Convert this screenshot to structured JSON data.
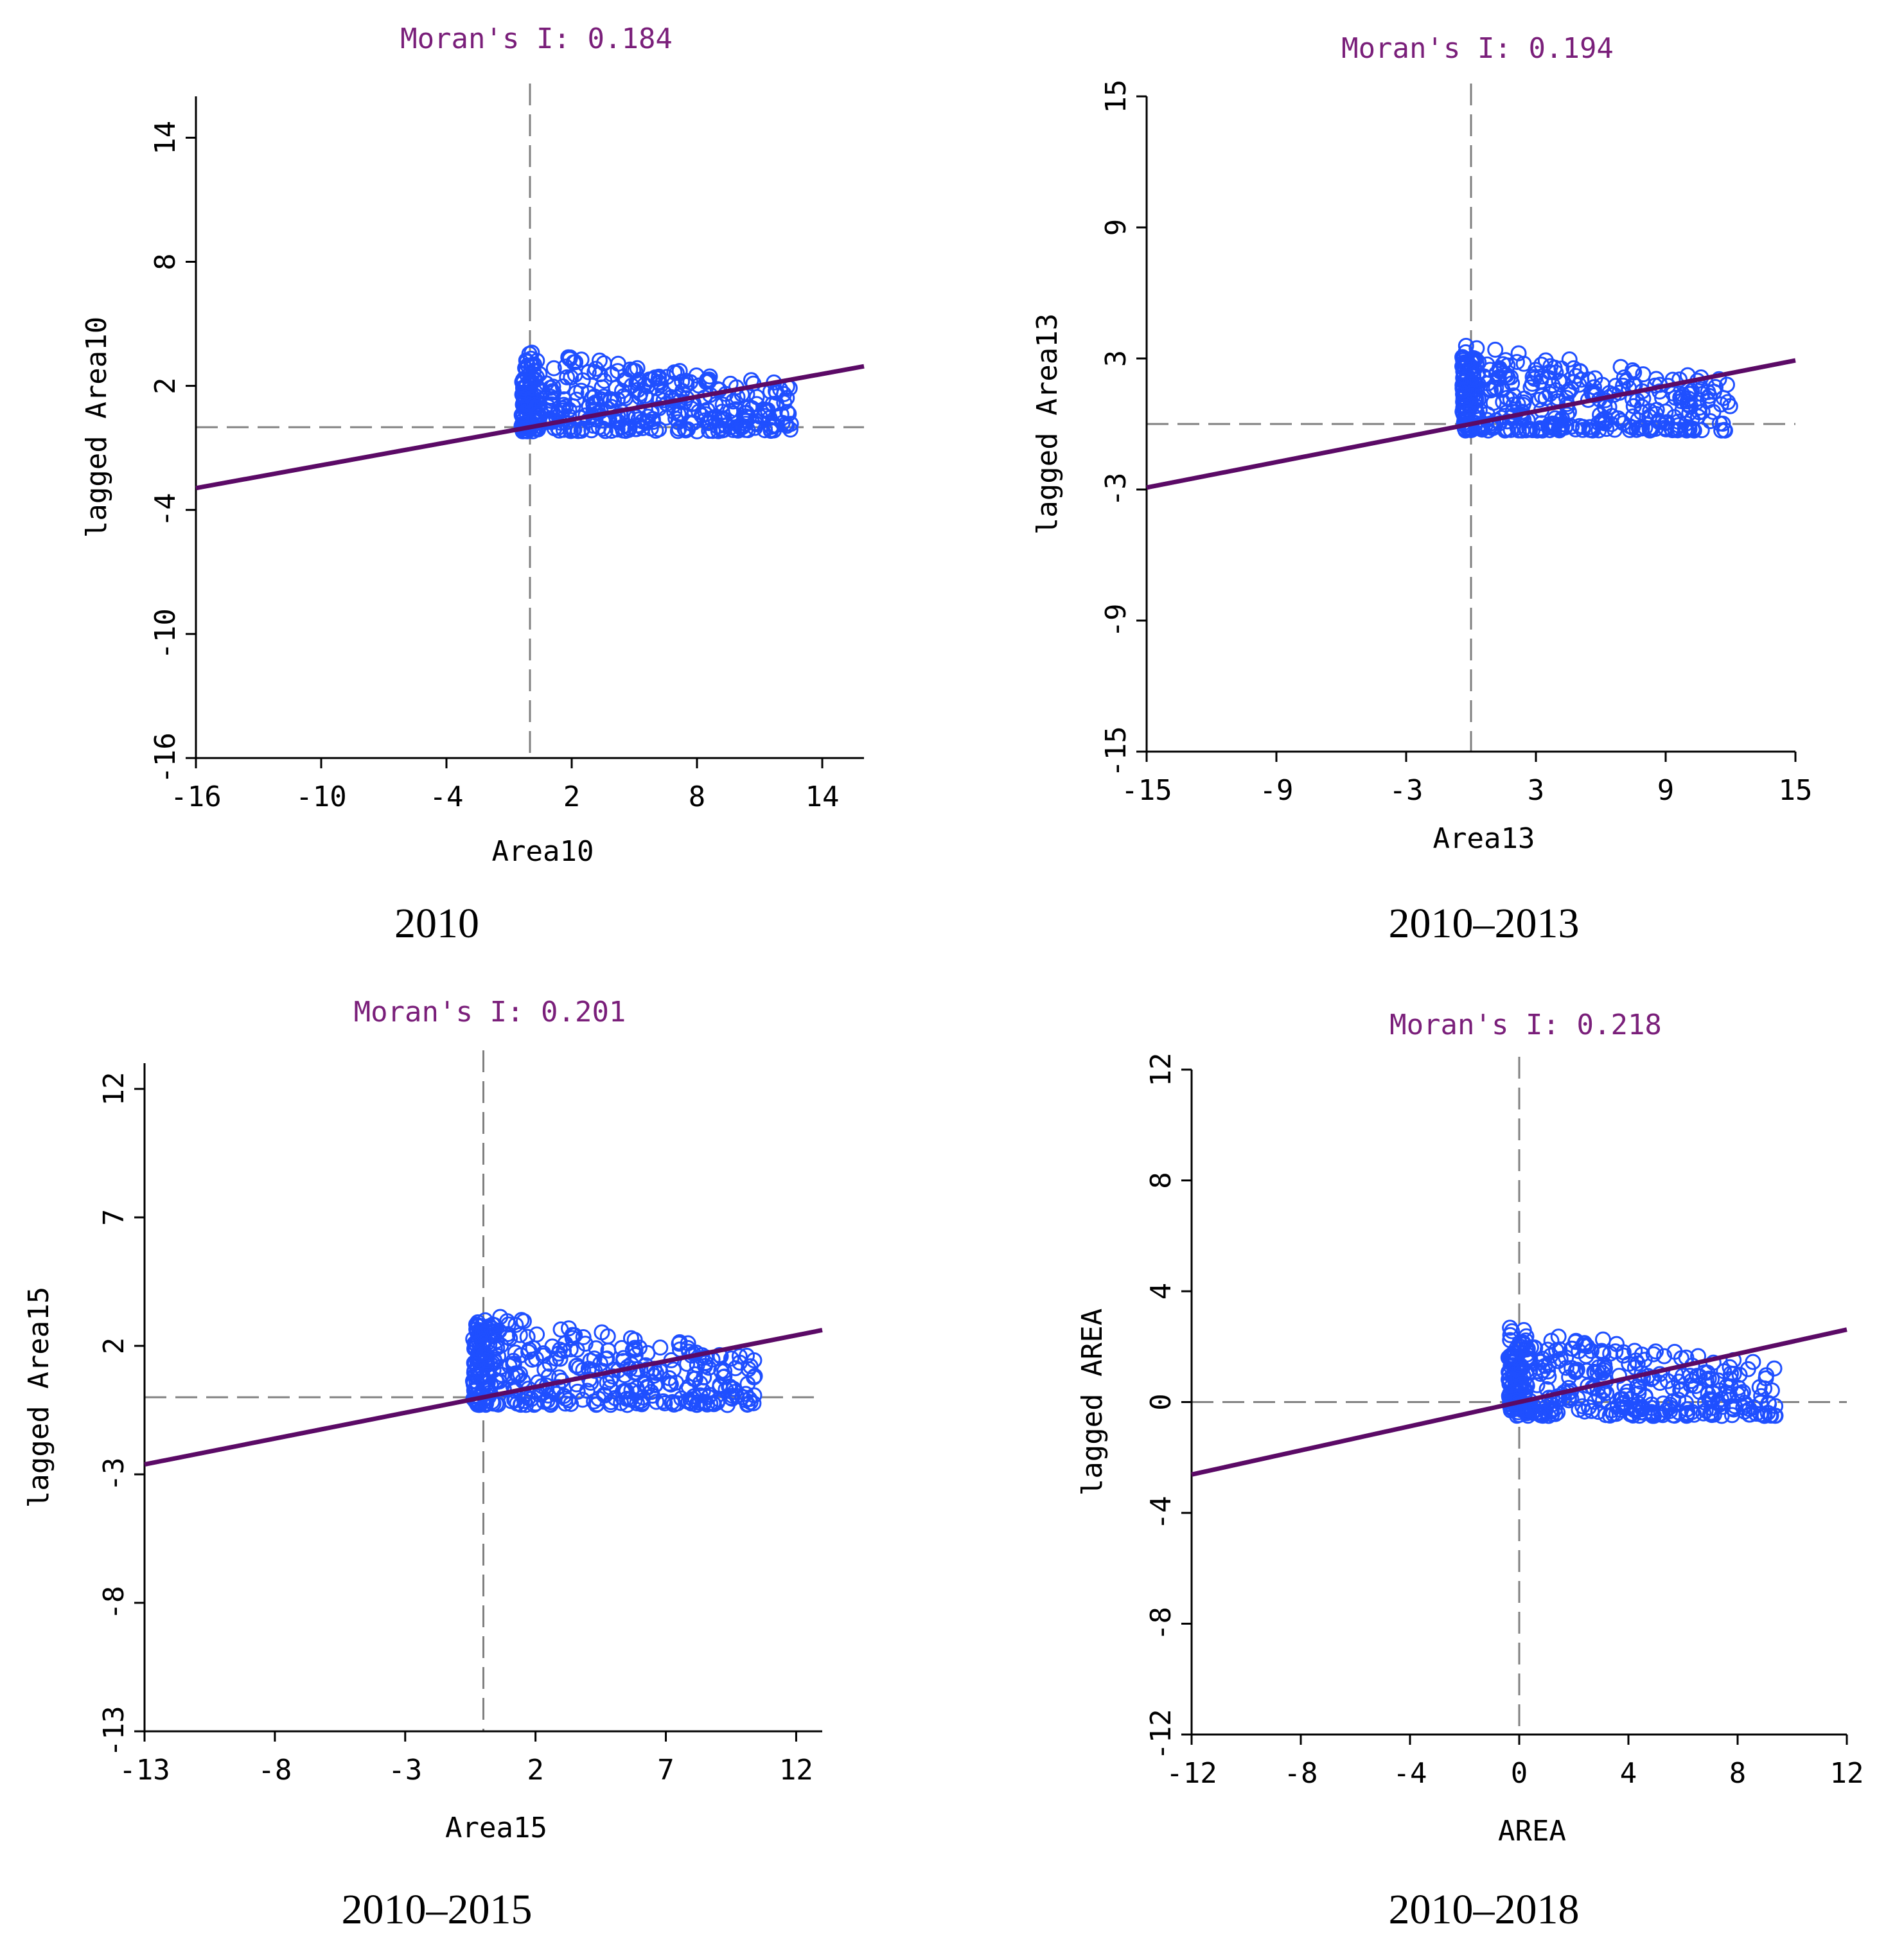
{
  "colors": {
    "title": "#7a1f7a",
    "point": "#1f4fff",
    "regression": "#5b0a66",
    "axis": "#000000",
    "dashed": "#808080"
  },
  "chart_data": [
    {
      "type": "scatter",
      "title": "Moran's I: 0.184",
      "caption": "2010",
      "xlabel": "Area10",
      "ylabel": "lagged Area10",
      "xlim": [
        -16,
        16
      ],
      "ylim": [
        -16,
        16
      ],
      "xticks": [
        -16,
        -10,
        -4,
        2,
        8,
        14
      ],
      "yticks": [
        -16,
        -10,
        -4,
        2,
        8,
        14
      ],
      "tick_labels_x": [
        "-16",
        "-10",
        "-4",
        "2",
        "8",
        "14"
      ],
      "tick_labels_y": [
        "-16",
        "-10",
        "-4",
        "2",
        "8",
        "14"
      ],
      "slope": 0.184,
      "points": {
        "xmin": -0.4,
        "xmax": 12.5,
        "ymin": -0.2,
        "ymax": 4.4,
        "count": 420,
        "seed": 11
      }
    },
    {
      "type": "scatter",
      "title": "Moran's I: 0.194",
      "caption": "2010–2013",
      "xlabel": "Area13",
      "ylabel": "lagged Area13",
      "xlim": [
        -15,
        15
      ],
      "ylim": [
        -15,
        15
      ],
      "xticks": [
        -15,
        -9,
        -3,
        3,
        9,
        15
      ],
      "yticks": [
        -15,
        -9,
        -3,
        3,
        9,
        15
      ],
      "tick_labels_x": [
        "-15",
        "-9",
        "-3",
        "3",
        "9",
        "15"
      ],
      "tick_labels_y": [
        "-15",
        "-9",
        "-3",
        "3",
        "9",
        "15"
      ],
      "slope": 0.194,
      "points": {
        "xmin": -0.4,
        "xmax": 12,
        "ymin": -0.3,
        "ymax": 4.3,
        "count": 420,
        "seed": 23
      }
    },
    {
      "type": "scatter",
      "title": "Moran's I: 0.201",
      "caption": "2010–2015",
      "xlabel": "Area15",
      "ylabel": "lagged Area15",
      "xlim": [
        -13,
        13
      ],
      "ylim": [
        -13,
        13
      ],
      "xticks": [
        -13,
        -8,
        -3,
        2,
        7,
        12
      ],
      "yticks": [
        -13,
        -8,
        -3,
        2,
        7,
        12
      ],
      "tick_labels_x": [
        "-13",
        "-8",
        "-3",
        "2",
        "7",
        "12"
      ],
      "tick_labels_y": [
        "-13",
        "-8",
        "-3",
        "2",
        "7",
        "12"
      ],
      "slope": 0.201,
      "points": {
        "xmin": -0.4,
        "xmax": 10.5,
        "ymin": -0.3,
        "ymax": 3.9,
        "count": 420,
        "seed": 37
      }
    },
    {
      "type": "scatter",
      "title": "Moran's I: 0.218",
      "caption": "2010–2018",
      "xlabel": "AREA",
      "ylabel": "lagged AREA",
      "xlim": [
        -12,
        12
      ],
      "ylim": [
        -12,
        12
      ],
      "xticks": [
        -12,
        -8,
        -4,
        0,
        4,
        8,
        12
      ],
      "yticks": [
        -12,
        -8,
        -4,
        0,
        4,
        8,
        12
      ],
      "tick_labels_x": [
        "-12",
        "-8",
        "-4",
        "0",
        "4",
        "8",
        "12"
      ],
      "tick_labels_y": [
        "-12",
        "-8",
        "-4",
        "0",
        "4",
        "8",
        "12"
      ],
      "slope": 0.218,
      "points": {
        "xmin": -0.4,
        "xmax": 9.4,
        "ymin": -0.5,
        "ymax": 3.3,
        "count": 420,
        "seed": 53
      }
    }
  ]
}
